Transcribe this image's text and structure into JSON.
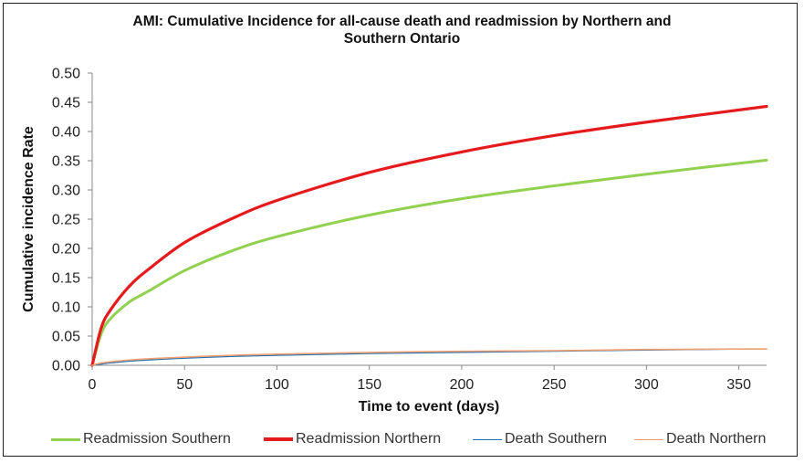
{
  "chart_data": {
    "type": "line",
    "title_line1": "AMI: Cumulative Incidence for all-cause death and readmission by Northern and",
    "title_line2": "Southern Ontario",
    "xlabel": "Time to event (days)",
    "ylabel": "Cumulative incidence Rate",
    "xlim": [
      0,
      365
    ],
    "ylim": [
      0,
      0.5
    ],
    "xticks": [
      0,
      50,
      100,
      150,
      200,
      250,
      300,
      350
    ],
    "xtick_labels": [
      "0",
      "50",
      "100",
      "150",
      "200",
      "250",
      "300",
      "350"
    ],
    "yticks": [
      0,
      0.05,
      0.1,
      0.15,
      0.2,
      0.25,
      0.3,
      0.35,
      0.4,
      0.45,
      0.5
    ],
    "ytick_labels": [
      "0.00",
      "0.05",
      "0.10",
      "0.15",
      "0.20",
      "0.25",
      "0.30",
      "0.35",
      "0.40",
      "0.45",
      "0.50"
    ],
    "grid": false,
    "legend_position": "bottom",
    "series": [
      {
        "name": "Readmission Southern",
        "color": "#92d050",
        "x": [
          0,
          5,
          10,
          20,
          30,
          50,
          75,
          100,
          150,
          200,
          250,
          300,
          365
        ],
        "y": [
          0,
          0.055,
          0.08,
          0.108,
          0.126,
          0.162,
          0.195,
          0.22,
          0.257,
          0.285,
          0.307,
          0.327,
          0.351
        ]
      },
      {
        "name": "Readmission Northern",
        "color": "#e41a1c",
        "x": [
          0,
          5,
          10,
          20,
          30,
          50,
          75,
          100,
          150,
          200,
          250,
          300,
          365
        ],
        "y": [
          0,
          0.065,
          0.095,
          0.135,
          0.163,
          0.21,
          0.25,
          0.282,
          0.33,
          0.365,
          0.393,
          0.416,
          0.443
        ]
      },
      {
        "name": "Death Southern",
        "color": "#1f6fb2",
        "x": [
          0,
          5,
          10,
          20,
          30,
          50,
          75,
          100,
          150,
          200,
          250,
          300,
          365
        ],
        "y": [
          0,
          0.002,
          0.004,
          0.007,
          0.009,
          0.012,
          0.015,
          0.017,
          0.02,
          0.022,
          0.024,
          0.026,
          0.028
        ]
      },
      {
        "name": "Death Northern",
        "color": "#f0a070",
        "x": [
          0,
          5,
          10,
          20,
          30,
          50,
          75,
          100,
          150,
          200,
          250,
          300,
          365
        ],
        "y": [
          0,
          0.004,
          0.006,
          0.009,
          0.011,
          0.014,
          0.017,
          0.019,
          0.022,
          0.024,
          0.025,
          0.027,
          0.028
        ]
      }
    ]
  }
}
